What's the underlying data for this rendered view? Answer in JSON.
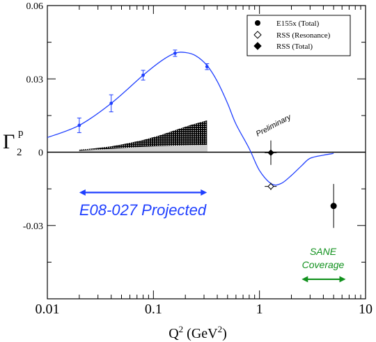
{
  "chart_data": {
    "type": "scatter",
    "xscale": "log",
    "xlim": [
      0.01,
      10
    ],
    "ylim": [
      -0.06,
      0.06
    ],
    "x_ticks": [
      0.01,
      0.1,
      1,
      10
    ],
    "x_tick_labels": [
      "0.01",
      "0.1",
      "1",
      "10"
    ],
    "y_ticks": [
      -0.03,
      0,
      0.03,
      0.06
    ],
    "y_tick_labels": [
      "-0.03",
      "0",
      "0.03",
      "0.06"
    ],
    "xlabel": {
      "base": "Q",
      "sup": "2",
      "text": " (GeV",
      "sup2": "2",
      "close": ")"
    },
    "ylabel": {
      "base": "Γ",
      "sup": "p",
      "sub": "2"
    },
    "legend": {
      "placement": "top-right",
      "entries": [
        {
          "label": "E155x (Total)",
          "marker": "filled-circle"
        },
        {
          "label": "RSS  (Resonance)",
          "marker": "open-diamond"
        },
        {
          "label": "RSS (Total)",
          "marker": "filled-diamond"
        }
      ]
    },
    "projected_points": {
      "color": "#1f3fff",
      "x": [
        0.02,
        0.04,
        0.08,
        0.16,
        0.32
      ],
      "y": [
        0.011,
        0.02,
        0.0315,
        0.0405,
        0.035
      ],
      "err": [
        0.003,
        0.0035,
        0.002,
        0.0013,
        0.0012
      ]
    },
    "model_curve": {
      "color": "#1f3fff",
      "x": [
        0.01,
        0.02,
        0.04,
        0.08,
        0.12,
        0.16,
        0.2,
        0.25,
        0.32,
        0.4,
        0.5,
        0.6,
        0.8,
        1.0,
        1.3,
        1.6,
        2.0,
        2.5,
        3.0,
        4.0,
        5.0
      ],
      "y": [
        0.006,
        0.011,
        0.02,
        0.0315,
        0.0375,
        0.0405,
        0.0408,
        0.0395,
        0.0355,
        0.029,
        0.02,
        0.0115,
        0.0015,
        -0.0075,
        -0.013,
        -0.0128,
        -0.0095,
        -0.0055,
        -0.0025,
        -0.0012,
        -0.0005
      ]
    },
    "band": {
      "x_start": 0.02,
      "x_end": 0.32,
      "upper": [
        0.001,
        0.0016,
        0.0024,
        0.0036,
        0.005,
        0.0068,
        0.009,
        0.0112,
        0.013
      ],
      "lower_gray": [
        0.0006,
        0.001,
        0.0014,
        0.0018,
        0.0022,
        0.0025,
        0.0027,
        0.0029,
        0.003
      ]
    },
    "e155x": {
      "x": 5.0,
      "y": -0.022,
      "err": 0.009
    },
    "rss_resonance": {
      "x": 1.28,
      "y": -0.014,
      "err": 0.0015,
      "xerr_lo": 1.12,
      "xerr_hi": 1.45
    },
    "rss_total": {
      "x": 1.28,
      "y": -0.0002,
      "err": 0.005,
      "xerr_lo": 1.12,
      "xerr_hi": 1.45
    },
    "e08_range": {
      "x_start": 0.02,
      "x_end": 0.32,
      "y": -0.0165,
      "label": "E08-027 Projected",
      "color": "#1f3fff"
    },
    "sane_range": {
      "x_start": 2.5,
      "x_end": 6.5,
      "y": -0.052,
      "label_line1": "SANE",
      "label_line2": "Coverage",
      "color": "#11911d"
    },
    "annotation": {
      "text": "Preliminary"
    }
  }
}
